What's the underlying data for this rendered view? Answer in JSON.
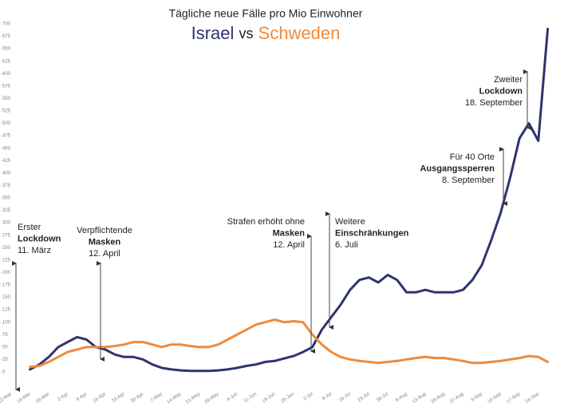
{
  "chart_data": {
    "type": "line",
    "title": "Tägliche neue Fälle pro Mio Einwohner",
    "title_joiner": "vs",
    "categories": [
      "12-Mar",
      null,
      "19-Mar",
      null,
      "26-Mar",
      null,
      "2-Apr",
      null,
      "9-Apr",
      null,
      "16-Apr",
      null,
      "23-Apr",
      null,
      "30-Apr",
      null,
      "7-May",
      null,
      "14-May",
      null,
      "21-May",
      null,
      "28-May",
      null,
      "4-Jun",
      null,
      "11-Jun",
      null,
      "18-Jun",
      null,
      "25-Jun",
      null,
      "2-Jul",
      null,
      "9-Jul",
      null,
      "16-Jul",
      null,
      "23-Jul",
      null,
      "30-Jul",
      null,
      "6-Aug",
      null,
      "13-Aug",
      null,
      "20-Aug",
      null,
      "27-Aug",
      null,
      "3-Sep",
      null,
      "10-Sep",
      null,
      "17-Sep",
      null,
      "24-Sep",
      null
    ],
    "series": [
      {
        "name": "Israel",
        "color": "#2e3470",
        "values": [
          null,
          null,
          5,
          15,
          30,
          50,
          60,
          70,
          65,
          50,
          45,
          35,
          30,
          30,
          25,
          15,
          8,
          5,
          3,
          2,
          2,
          2,
          3,
          5,
          8,
          12,
          15,
          20,
          22,
          27,
          32,
          40,
          50,
          85,
          110,
          135,
          165,
          185,
          190,
          180,
          195,
          185,
          160,
          160,
          165,
          160,
          160,
          160,
          165,
          185,
          215,
          265,
          320,
          390,
          470,
          500,
          465,
          690
        ]
      },
      {
        "name": "Schweden",
        "color": "#f08a3a",
        "values": [
          null,
          null,
          10,
          12,
          20,
          30,
          40,
          45,
          50,
          50,
          50,
          52,
          55,
          60,
          60,
          55,
          50,
          55,
          55,
          52,
          50,
          50,
          55,
          65,
          75,
          85,
          95,
          100,
          105,
          100,
          102,
          100,
          75,
          55,
          40,
          30,
          25,
          22,
          20,
          18,
          20,
          22,
          25,
          28,
          30,
          28,
          28,
          25,
          22,
          18,
          18,
          20,
          22,
          25,
          28,
          32,
          30,
          20
        ]
      }
    ],
    "ylim": [
      0,
      700
    ],
    "yticks": [
      0,
      25,
      50,
      75,
      100,
      125,
      150,
      175,
      200,
      225,
      250,
      275,
      300,
      325,
      350,
      375,
      400,
      425,
      450,
      475,
      500,
      525,
      550,
      575,
      600,
      625,
      650,
      675,
      700
    ],
    "grid": false,
    "annotations": [
      {
        "lines": [
          "Erster",
          "Lockdown",
          "11. März"
        ]
      },
      {
        "lines": [
          "Verpflichtende",
          "Masken",
          "12. April"
        ]
      },
      {
        "lines": [
          "Strafen erhöht ohne",
          "Masken",
          "12. April"
        ]
      },
      {
        "lines": [
          "Weitere",
          "Einschränkungen",
          "6. Juli"
        ]
      },
      {
        "lines": [
          "Für 40 Orte",
          "Ausgangssperren",
          "8. September"
        ]
      },
      {
        "lines": [
          "Zweiter",
          "Lockdown",
          "18. September"
        ]
      }
    ]
  }
}
